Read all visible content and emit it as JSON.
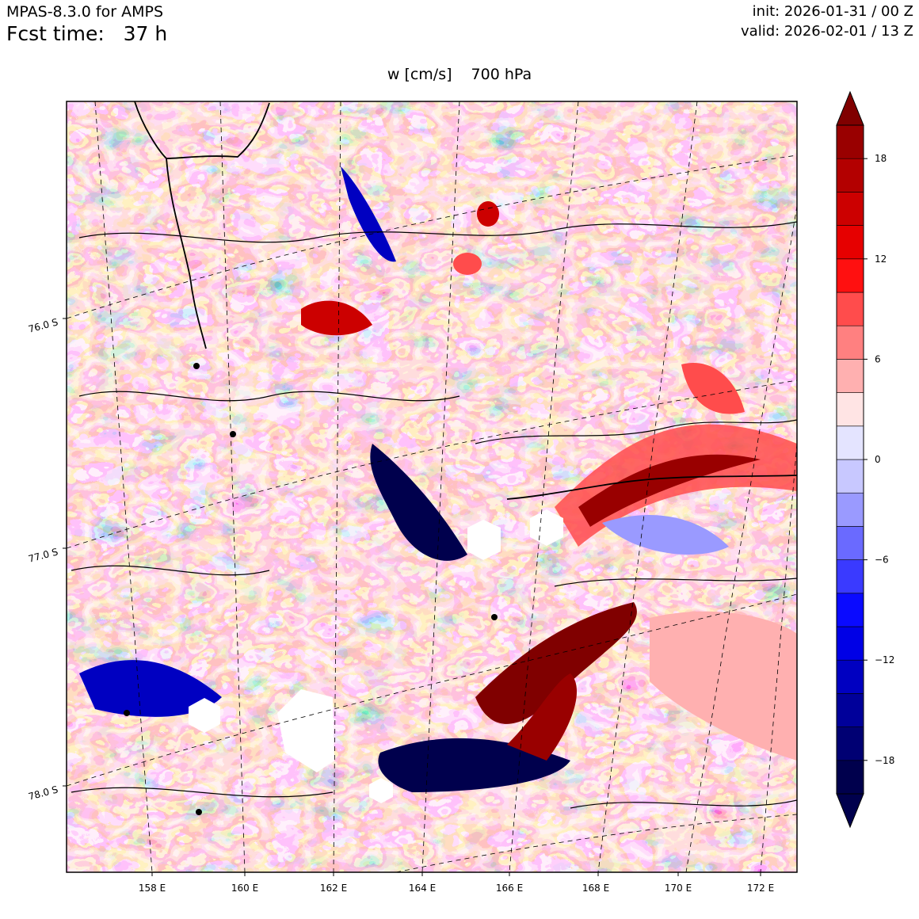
{
  "header": {
    "model_name": "MPAS-8.3.0 for AMPS",
    "fcst_label": "Fcst time:",
    "fcst_value": "37 h",
    "init": "init: 2026-01-31 / 00 Z",
    "valid": "valid: 2026-02-01 / 13 Z"
  },
  "map": {
    "variable": "w [cm/s]",
    "level": "700 hPa",
    "lon_labels": [
      "158 E",
      "160 E",
      "162 E",
      "164 E",
      "166 E",
      "168 E",
      "170 E",
      "172 E"
    ],
    "lat_labels": [
      "76.0 S",
      "77.0 S",
      "78.0 S"
    ]
  },
  "colorbar": {
    "tick_labels": [
      "18",
      "12",
      "6",
      "0",
      "−6",
      "−12",
      "−18"
    ],
    "tick_values": [
      18,
      12,
      6,
      0,
      -6,
      -12,
      -18
    ],
    "min": -20,
    "max": 20,
    "step": 2,
    "colors_low_to_high": [
      "#00004d",
      "#000073",
      "#00009a",
      "#0000c1",
      "#0000e6",
      "#0a0aff",
      "#3a3aff",
      "#6a6aff",
      "#9a9aff",
      "#c8c8ff",
      "#e4e4ff",
      "#ffe4e4",
      "#ffb0b0",
      "#ff8080",
      "#ff4c4c",
      "#ff1010",
      "#e60000",
      "#cc0000",
      "#b30000",
      "#990000",
      "#800000"
    ],
    "extend_low_color": "#00004d",
    "extend_high_color": "#800000"
  }
}
